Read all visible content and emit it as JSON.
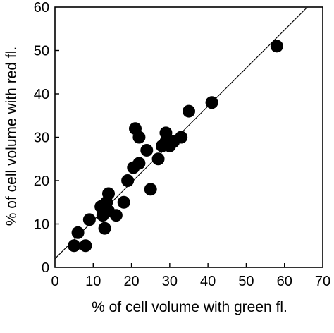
{
  "chart_data": {
    "type": "scatter",
    "title": "",
    "xlabel": "% of cell volume with green fl.",
    "ylabel": "% of cell volume with red fl.",
    "xlim": [
      0,
      70
    ],
    "ylim": [
      0,
      60
    ],
    "xticks": [
      "0",
      "10",
      "20",
      "30",
      "40",
      "50",
      "60",
      "70"
    ],
    "yticks": [
      "0",
      "10",
      "20",
      "30",
      "40",
      "50",
      "60"
    ],
    "grid": false,
    "legend": "none",
    "marker_color": "#000000",
    "series": [
      {
        "points": [
          [
            5,
            5
          ],
          [
            6,
            8
          ],
          [
            8,
            5
          ],
          [
            9,
            11
          ],
          [
            12,
            14
          ],
          [
            12.5,
            12
          ],
          [
            13,
            9
          ],
          [
            13.5,
            15
          ],
          [
            14,
            17
          ],
          [
            14,
            13
          ],
          [
            16,
            12
          ],
          [
            18,
            15
          ],
          [
            19,
            20
          ],
          [
            20.5,
            23
          ],
          [
            21,
            32
          ],
          [
            22,
            30
          ],
          [
            22,
            24
          ],
          [
            24,
            27
          ],
          [
            25,
            18
          ],
          [
            27,
            25
          ],
          [
            28,
            28
          ],
          [
            29,
            31
          ],
          [
            29,
            29
          ],
          [
            30,
            28
          ],
          [
            31,
            29
          ],
          [
            33,
            30
          ],
          [
            35,
            36
          ],
          [
            41,
            38
          ],
          [
            58,
            51
          ]
        ]
      }
    ],
    "reference_line": {
      "from": [
        0,
        2
      ],
      "to": [
        66,
        60
      ]
    }
  }
}
